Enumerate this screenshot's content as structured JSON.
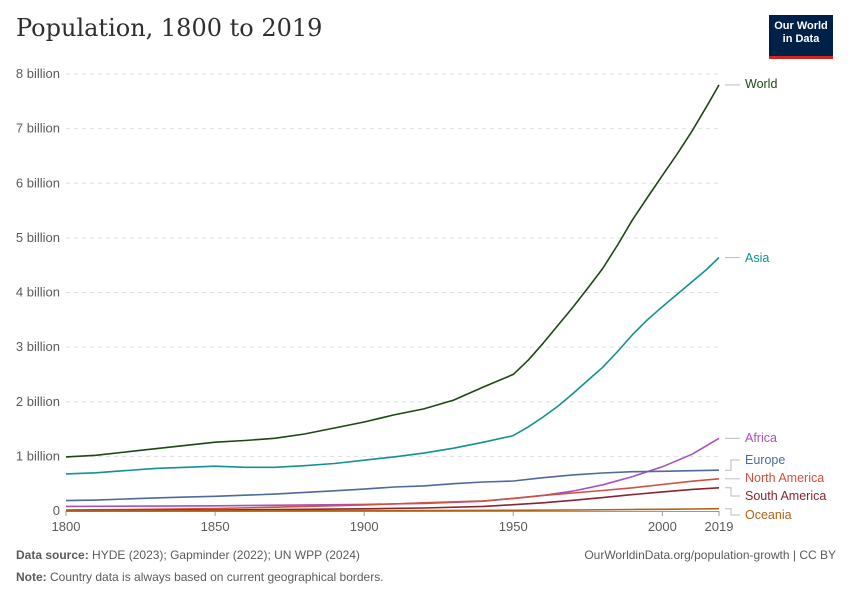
{
  "header": {
    "title": "Population, 1800 to 2019",
    "logo_line1": "Our World",
    "logo_line2": "in Data"
  },
  "footer": {
    "source_label": "Data source:",
    "source_text": "HYDE (2023); Gapminder (2022); UN WPP (2024)",
    "note_label": "Note:",
    "note_text": "Country data is always based on current geographical borders.",
    "url": "OurWorldinData.org/population-growth | CC BY"
  },
  "colors": {
    "World": "#1e4714",
    "Asia": "#139191",
    "Africa": "#a652ba",
    "Europe": "#4c6a9c",
    "North America": "#d0503c",
    "South America": "#892431",
    "Oceania": "#b16214",
    "grid": "#dddddd",
    "axis": "#999999"
  },
  "chart_data": {
    "type": "line",
    "title": "Population, 1800 to 2019",
    "xlabel": "",
    "ylabel": "",
    "xlim": [
      1800,
      2019
    ],
    "ylim": [
      0,
      8000000000
    ],
    "x_ticks": [
      1800,
      1850,
      1900,
      1950,
      2000,
      2019
    ],
    "y_ticks": [
      {
        "value": 0,
        "label": "0"
      },
      {
        "value": 1000000000,
        "label": "1 billion"
      },
      {
        "value": 2000000000,
        "label": "2 billion"
      },
      {
        "value": 3000000000,
        "label": "3 billion"
      },
      {
        "value": 4000000000,
        "label": "4 billion"
      },
      {
        "value": 5000000000,
        "label": "5 billion"
      },
      {
        "value": 6000000000,
        "label": "6 billion"
      },
      {
        "value": 7000000000,
        "label": "7 billion"
      },
      {
        "value": 8000000000,
        "label": "8 billion"
      }
    ],
    "grid": "horizontal-dashed",
    "legend": "labels at line ends (right)",
    "series": [
      {
        "name": "World",
        "points": [
          [
            1800,
            990000000
          ],
          [
            1810,
            1020000000
          ],
          [
            1820,
            1080000000
          ],
          [
            1830,
            1140000000
          ],
          [
            1840,
            1200000000
          ],
          [
            1850,
            1260000000
          ],
          [
            1860,
            1290000000
          ],
          [
            1870,
            1330000000
          ],
          [
            1880,
            1410000000
          ],
          [
            1890,
            1520000000
          ],
          [
            1900,
            1630000000
          ],
          [
            1910,
            1760000000
          ],
          [
            1920,
            1870000000
          ],
          [
            1930,
            2030000000
          ],
          [
            1940,
            2270000000
          ],
          [
            1950,
            2500000000
          ],
          [
            1955,
            2760000000
          ],
          [
            1960,
            3070000000
          ],
          [
            1965,
            3400000000
          ],
          [
            1970,
            3730000000
          ],
          [
            1975,
            4080000000
          ],
          [
            1980,
            4440000000
          ],
          [
            1985,
            4870000000
          ],
          [
            1990,
            5330000000
          ],
          [
            1995,
            5740000000
          ],
          [
            2000,
            6140000000
          ],
          [
            2005,
            6540000000
          ],
          [
            2010,
            6960000000
          ],
          [
            2015,
            7420000000
          ],
          [
            2019,
            7800000000
          ]
        ]
      },
      {
        "name": "Asia",
        "points": [
          [
            1800,
            680000000
          ],
          [
            1810,
            700000000
          ],
          [
            1820,
            740000000
          ],
          [
            1830,
            780000000
          ],
          [
            1840,
            800000000
          ],
          [
            1850,
            820000000
          ],
          [
            1860,
            800000000
          ],
          [
            1870,
            800000000
          ],
          [
            1880,
            830000000
          ],
          [
            1890,
            870000000
          ],
          [
            1900,
            930000000
          ],
          [
            1910,
            990000000
          ],
          [
            1920,
            1060000000
          ],
          [
            1930,
            1150000000
          ],
          [
            1940,
            1260000000
          ],
          [
            1950,
            1380000000
          ],
          [
            1955,
            1540000000
          ],
          [
            1960,
            1720000000
          ],
          [
            1965,
            1920000000
          ],
          [
            1970,
            2150000000
          ],
          [
            1975,
            2390000000
          ],
          [
            1980,
            2630000000
          ],
          [
            1985,
            2920000000
          ],
          [
            1990,
            3230000000
          ],
          [
            1995,
            3500000000
          ],
          [
            2000,
            3740000000
          ],
          [
            2005,
            3970000000
          ],
          [
            2010,
            4200000000
          ],
          [
            2015,
            4430000000
          ],
          [
            2019,
            4640000000
          ]
        ]
      },
      {
        "name": "Africa",
        "points": [
          [
            1800,
            85000000
          ],
          [
            1850,
            95000000
          ],
          [
            1900,
            120000000
          ],
          [
            1920,
            140000000
          ],
          [
            1940,
            180000000
          ],
          [
            1950,
            230000000
          ],
          [
            1960,
            285000000
          ],
          [
            1970,
            365000000
          ],
          [
            1980,
            480000000
          ],
          [
            1990,
            630000000
          ],
          [
            2000,
            810000000
          ],
          [
            2010,
            1040000000
          ],
          [
            2019,
            1330000000
          ]
        ]
      },
      {
        "name": "Europe",
        "points": [
          [
            1800,
            190000000
          ],
          [
            1810,
            200000000
          ],
          [
            1820,
            220000000
          ],
          [
            1830,
            240000000
          ],
          [
            1840,
            255000000
          ],
          [
            1850,
            270000000
          ],
          [
            1860,
            290000000
          ],
          [
            1870,
            310000000
          ],
          [
            1880,
            340000000
          ],
          [
            1890,
            370000000
          ],
          [
            1900,
            400000000
          ],
          [
            1910,
            440000000
          ],
          [
            1920,
            460000000
          ],
          [
            1930,
            500000000
          ],
          [
            1940,
            530000000
          ],
          [
            1950,
            550000000
          ],
          [
            1960,
            610000000
          ],
          [
            1970,
            660000000
          ],
          [
            1980,
            695000000
          ],
          [
            1990,
            720000000
          ],
          [
            2000,
            727000000
          ],
          [
            2010,
            737000000
          ],
          [
            2019,
            747000000
          ]
        ]
      },
      {
        "name": "North America",
        "points": [
          [
            1800,
            18000000
          ],
          [
            1820,
            25000000
          ],
          [
            1850,
            45000000
          ],
          [
            1870,
            70000000
          ],
          [
            1900,
            110000000
          ],
          [
            1920,
            150000000
          ],
          [
            1940,
            185000000
          ],
          [
            1950,
            230000000
          ],
          [
            1960,
            285000000
          ],
          [
            1970,
            330000000
          ],
          [
            1980,
            375000000
          ],
          [
            1990,
            425000000
          ],
          [
            2000,
            485000000
          ],
          [
            2010,
            545000000
          ],
          [
            2019,
            590000000
          ]
        ]
      },
      {
        "name": "South America",
        "points": [
          [
            1800,
            9000000
          ],
          [
            1850,
            18000000
          ],
          [
            1870,
            25000000
          ],
          [
            1900,
            40000000
          ],
          [
            1920,
            55000000
          ],
          [
            1940,
            85000000
          ],
          [
            1950,
            115000000
          ],
          [
            1960,
            150000000
          ],
          [
            1970,
            195000000
          ],
          [
            1980,
            245000000
          ],
          [
            1990,
            300000000
          ],
          [
            2000,
            350000000
          ],
          [
            2010,
            395000000
          ],
          [
            2019,
            425000000
          ]
        ]
      },
      {
        "name": "Oceania",
        "points": [
          [
            1800,
            2000000
          ],
          [
            1850,
            2500000
          ],
          [
            1900,
            6000000
          ],
          [
            1950,
            13000000
          ],
          [
            1970,
            19000000
          ],
          [
            1990,
            27000000
          ],
          [
            2000,
            31000000
          ],
          [
            2010,
            37000000
          ],
          [
            2019,
            42000000
          ]
        ]
      }
    ]
  }
}
